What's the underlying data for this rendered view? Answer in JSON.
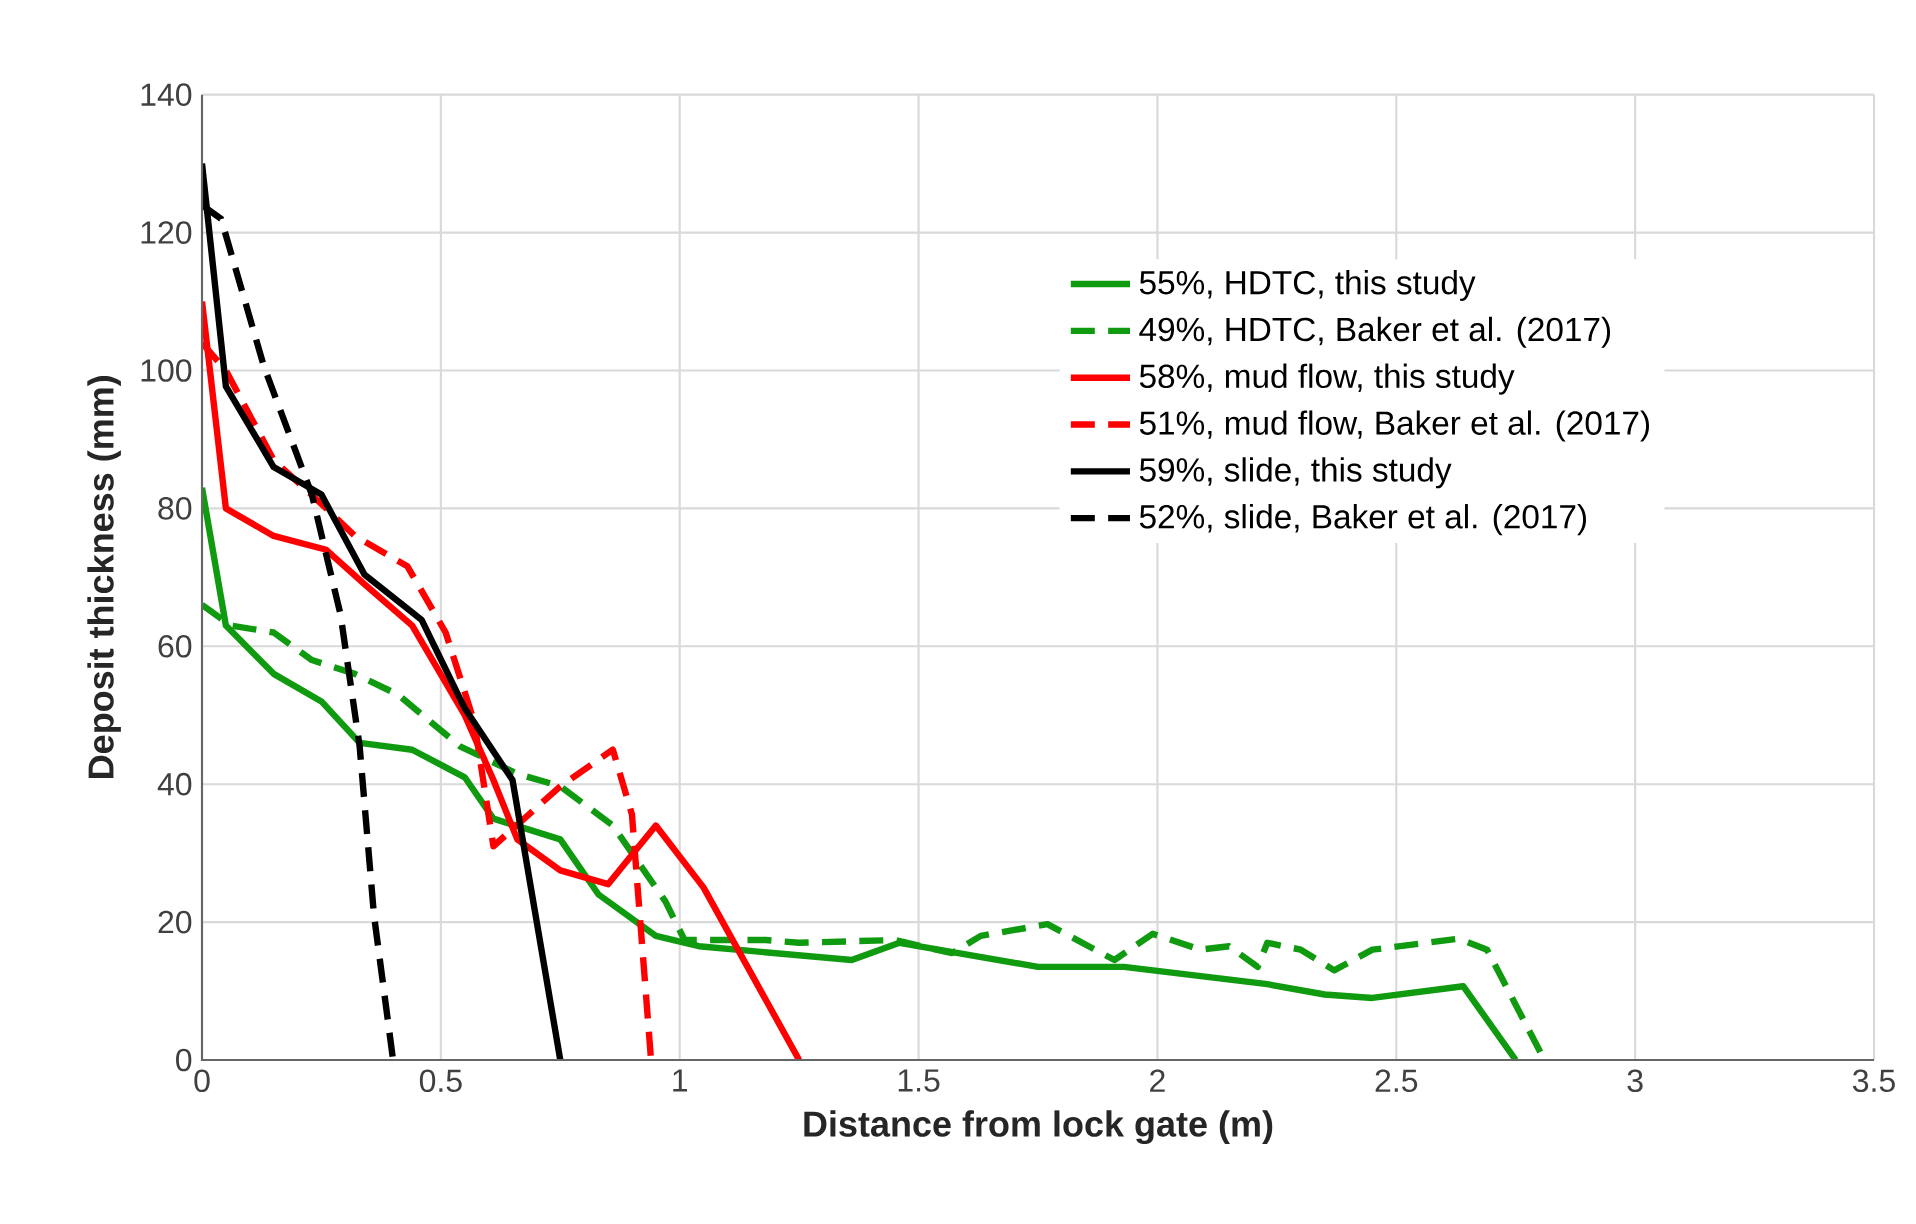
{
  "chart_data": {
    "type": "line",
    "xlabel": "Distance from lock gate (m)",
    "ylabel": "Deposit thickness (mm)",
    "xlim": [
      0,
      3.5
    ],
    "ylim": [
      0,
      140
    ],
    "xticks": [
      0,
      0.5,
      1,
      1.5,
      2,
      2.5,
      3,
      3.5
    ],
    "yticks": [
      0,
      20,
      40,
      60,
      80,
      100,
      120,
      140
    ],
    "grid": true,
    "legend": "top right",
    "marker": "none",
    "series": [
      {
        "name": "55%, HDTC, this study",
        "color": "#109a10",
        "line_style": "solid",
        "x": [
          0,
          0.05,
          0.15,
          0.25,
          0.33,
          0.44,
          0.55,
          0.61,
          0.75,
          0.83,
          0.95,
          1.04,
          1.36,
          1.46,
          1.75,
          1.93,
          2.23,
          2.35,
          2.45,
          2.64,
          2.75
        ],
        "values": [
          83,
          63,
          56,
          52,
          46,
          45,
          41,
          35,
          32,
          24,
          18,
          16.5,
          14.5,
          17,
          13.5,
          13.5,
          11,
          9.5,
          9,
          10.7,
          0
        ]
      },
      {
        "name": "49%, HDTC, Baker et al. (2017)",
        "color": "#109a10",
        "line_style": "dashed",
        "x": [
          0,
          0.06,
          0.15,
          0.23,
          0.32,
          0.41,
          0.54,
          0.66,
          0.75,
          0.86,
          0.97,
          1.01,
          1.18,
          1.25,
          1.45,
          1.57,
          1.63,
          1.77,
          1.91,
          1.99,
          2.09,
          2.15,
          2.21,
          2.23,
          2.3,
          2.37,
          2.45,
          2.63,
          2.69,
          2.81
        ],
        "values": [
          66,
          63,
          62,
          58,
          56,
          53,
          45.5,
          41.5,
          39.7,
          34,
          23,
          17.4,
          17.4,
          17,
          17.4,
          15.5,
          18,
          19.7,
          14.5,
          18.3,
          16,
          16.5,
          13.5,
          17,
          16,
          13,
          16,
          17.6,
          16,
          0
        ]
      },
      {
        "name": "58%, mud flow, this study",
        "color": "#ff0000",
        "line_style": "solid",
        "x": [
          0,
          0.05,
          0.15,
          0.26,
          0.34,
          0.44,
          0.55,
          0.61,
          0.66,
          0.75,
          0.85,
          0.95,
          1.05,
          1.25
        ],
        "values": [
          110,
          80,
          76,
          74,
          69,
          63,
          50,
          40.6,
          32,
          27.5,
          25.5,
          34,
          25,
          0
        ]
      },
      {
        "name": "51%, mud flow, Baker et al. (2017)",
        "color": "#ff0000",
        "line_style": "dashed",
        "x": [
          0,
          0.05,
          0.15,
          0.26,
          0.32,
          0.43,
          0.51,
          0.57,
          0.61,
          0.75,
          0.86,
          0.9,
          0.94
        ],
        "values": [
          104,
          100,
          87,
          80,
          76,
          71.6,
          62,
          49,
          31,
          39.7,
          45,
          35.6,
          0
        ]
      },
      {
        "name": "59%, slide, this study",
        "color": "#000000",
        "line_style": "solid",
        "x": [
          0,
          0.05,
          0.15,
          0.25,
          0.34,
          0.46,
          0.55,
          0.65,
          0.75
        ],
        "values": [
          130,
          97.7,
          86,
          82,
          70.4,
          63.8,
          51,
          40.6,
          0
        ]
      },
      {
        "name": "52%, slide, Baker et al. (2017)",
        "color": "#000000",
        "line_style": "dashed",
        "x": [
          0,
          0.04,
          0.13,
          0.23,
          0.29,
          0.33,
          0.36,
          0.4
        ],
        "values": [
          124,
          122,
          100.5,
          82,
          64.6,
          45.5,
          21,
          0
        ]
      }
    ]
  }
}
